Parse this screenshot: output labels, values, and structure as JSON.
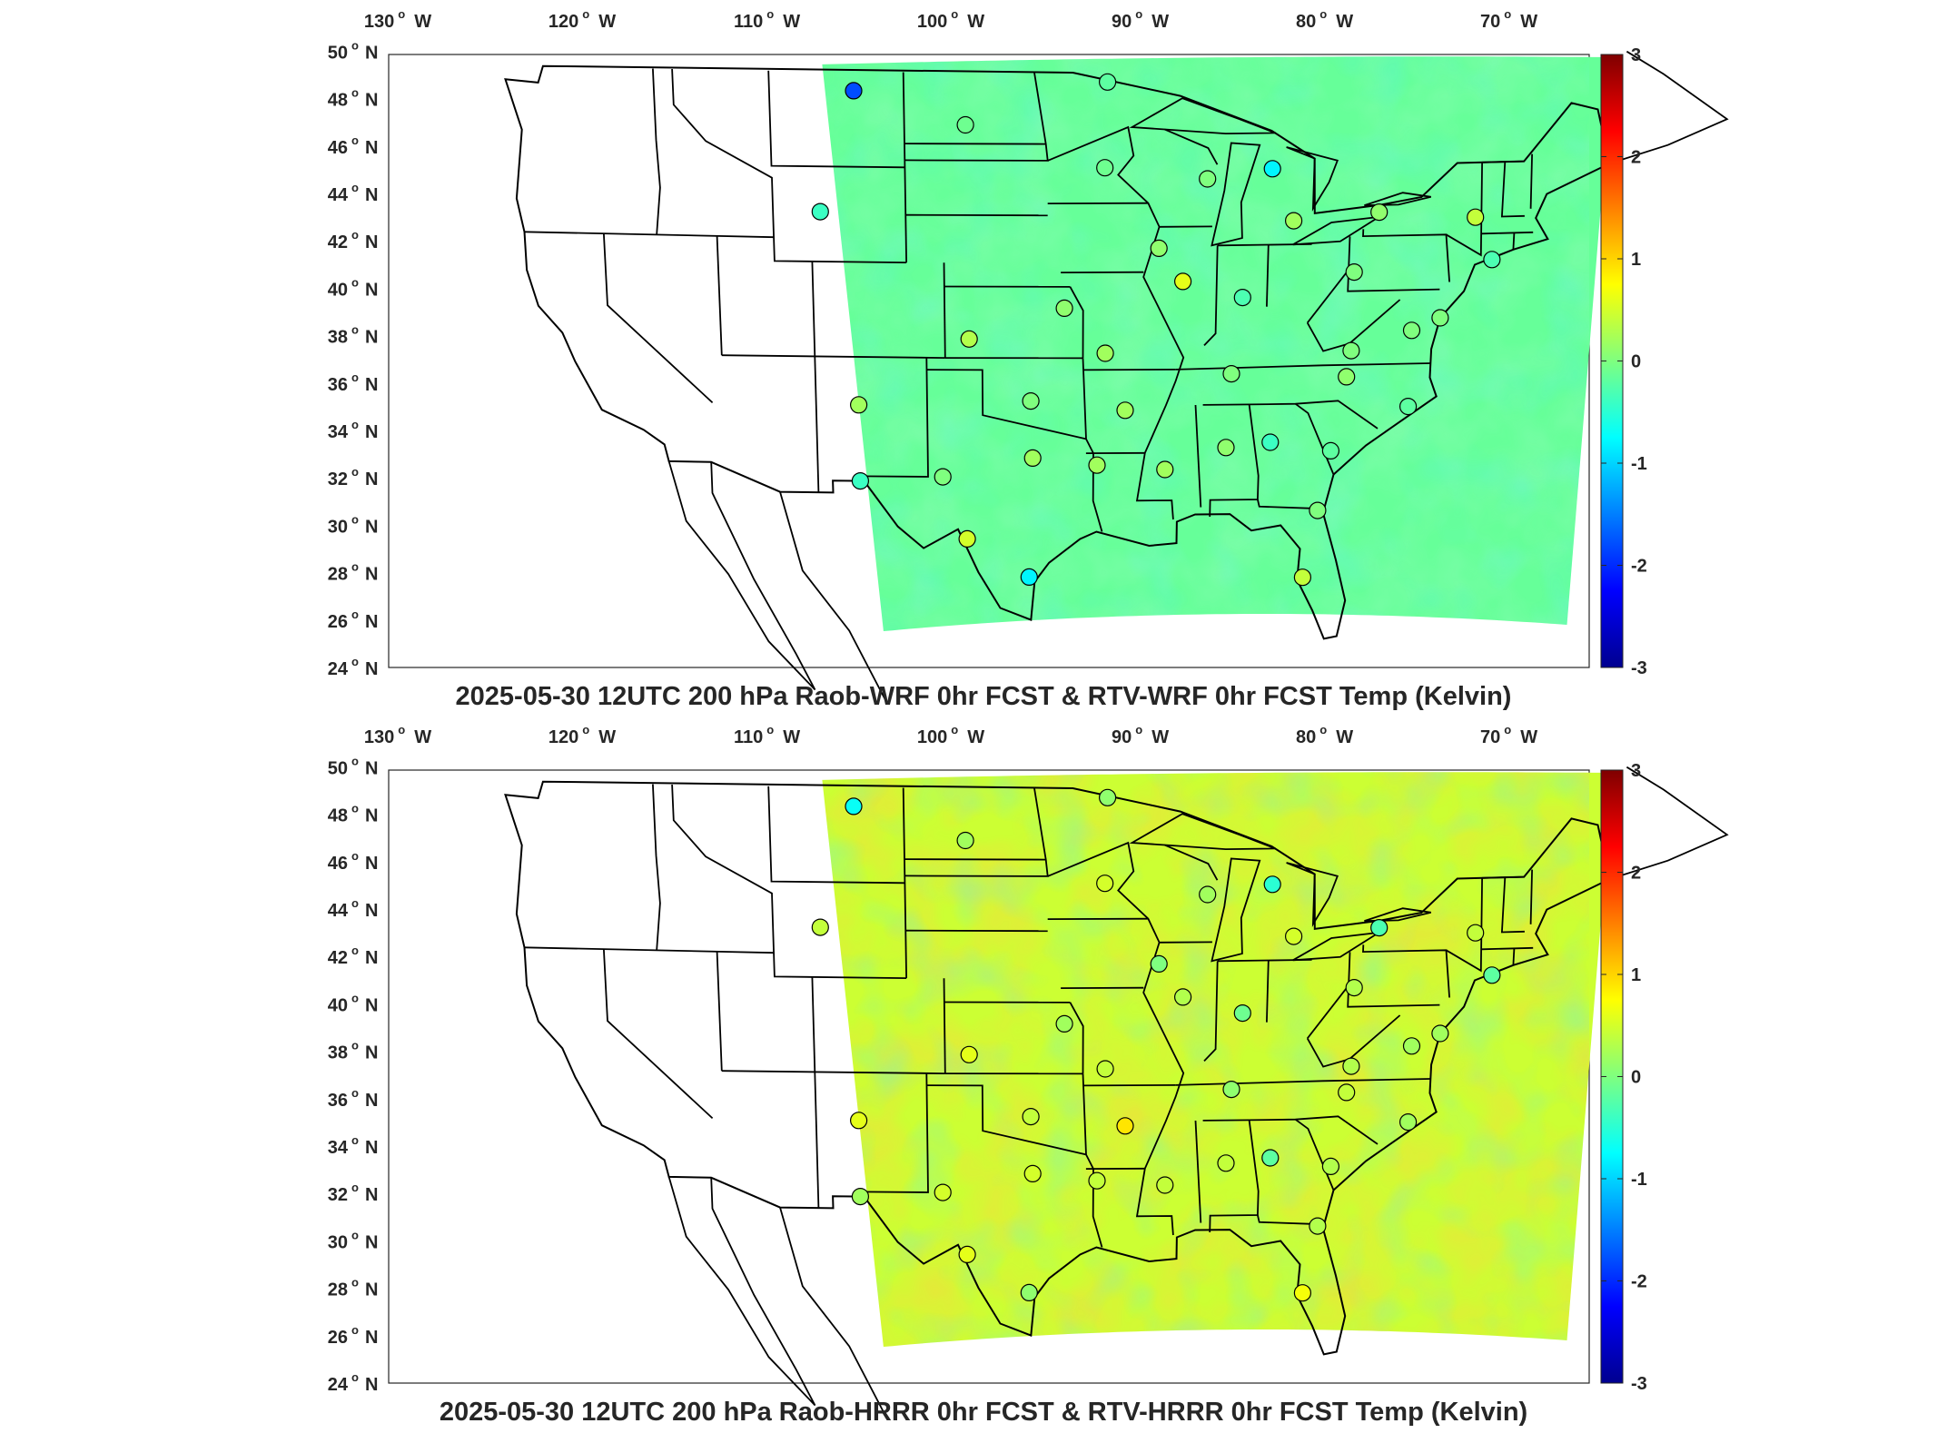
{
  "colors": {
    "jet": [
      "#00008f",
      "#0000ff",
      "#007fff",
      "#00ffff",
      "#7fff7f",
      "#ffff00",
      "#ff7f00",
      "#ff0000",
      "#7f0000"
    ],
    "field_wrf": "#7fe59a",
    "field_hrrr": "#c8f06a",
    "axis": "#262626",
    "state_lines": "#000000"
  },
  "panels": [
    {
      "id": "wrf",
      "title": "2025-05-30 12UTC 200 hPa Raob-WRF 0hr FCST & RTV-WRF 0hr FCST Temp (Kelvin)",
      "lon_labels": [
        "130",
        "120",
        "110",
        "100",
        "90",
        "80",
        "70"
      ],
      "lon_hemi": "W",
      "lat_labels": [
        "50",
        "48",
        "46",
        "44",
        "42",
        "40",
        "38",
        "36",
        "34",
        "32",
        "30",
        "28",
        "26",
        "24"
      ],
      "lat_hemi": "N",
      "degree_mark": "o",
      "colorbar_ticks": [
        "3",
        "2",
        "1",
        "0",
        "-1",
        "-2",
        "-3"
      ],
      "field_value_k": -0.15,
      "stations": [
        {
          "lon": -106.6,
          "lat": 48.2,
          "value": -1.8
        },
        {
          "lon": -100.8,
          "lat": 46.8,
          "value": -0.1
        },
        {
          "lon": -93.4,
          "lat": 48.6,
          "value": -0.2
        },
        {
          "lon": -108.5,
          "lat": 43.1,
          "value": -0.4
        },
        {
          "lon": -93.5,
          "lat": 45.0,
          "value": -0.1
        },
        {
          "lon": -88.1,
          "lat": 44.5,
          "value": 0.0
        },
        {
          "lon": -84.7,
          "lat": 44.9,
          "value": -0.8
        },
        {
          "lon": -83.5,
          "lat": 42.7,
          "value": 0.2
        },
        {
          "lon": -79.0,
          "lat": 43.0,
          "value": 0.1
        },
        {
          "lon": -73.9,
          "lat": 42.7,
          "value": 0.4
        },
        {
          "lon": -90.6,
          "lat": 41.6,
          "value": 0.1
        },
        {
          "lon": -89.3,
          "lat": 40.2,
          "value": 0.6
        },
        {
          "lon": -86.1,
          "lat": 39.5,
          "value": -0.3
        },
        {
          "lon": -80.2,
          "lat": 40.5,
          "value": 0.0
        },
        {
          "lon": -72.9,
          "lat": 40.9,
          "value": -0.3
        },
        {
          "lon": -95.6,
          "lat": 39.1,
          "value": 0.1
        },
        {
          "lon": -100.7,
          "lat": 37.8,
          "value": 0.3
        },
        {
          "lon": -93.4,
          "lat": 37.2,
          "value": 0.2
        },
        {
          "lon": -86.6,
          "lat": 36.3,
          "value": 0.0
        },
        {
          "lon": -80.2,
          "lat": 37.2,
          "value": 0.0
        },
        {
          "lon": -77.0,
          "lat": 38.0,
          "value": 0.0
        },
        {
          "lon": -80.4,
          "lat": 36.1,
          "value": 0.1
        },
        {
          "lon": -75.5,
          "lat": 38.5,
          "value": 0.0
        },
        {
          "lon": -106.7,
          "lat": 35.0,
          "value": 0.2
        },
        {
          "lon": -97.4,
          "lat": 35.2,
          "value": 0.0
        },
        {
          "lon": -92.3,
          "lat": 34.8,
          "value": 0.2
        },
        {
          "lon": -77.0,
          "lat": 34.8,
          "value": -0.2
        },
        {
          "lon": -86.8,
          "lat": 33.2,
          "value": 0.1
        },
        {
          "lon": -84.4,
          "lat": 33.4,
          "value": -0.4
        },
        {
          "lon": -81.1,
          "lat": 33.0,
          "value": -0.2
        },
        {
          "lon": -97.3,
          "lat": 32.8,
          "value": 0.2
        },
        {
          "lon": -90.1,
          "lat": 32.3,
          "value": 0.2
        },
        {
          "lon": -106.7,
          "lat": 31.8,
          "value": -0.4
        },
        {
          "lon": -102.2,
          "lat": 32.0,
          "value": 0.0
        },
        {
          "lon": -93.8,
          "lat": 32.5,
          "value": 0.2
        },
        {
          "lon": -100.9,
          "lat": 29.4,
          "value": 0.5
        },
        {
          "lon": -97.5,
          "lat": 27.8,
          "value": -0.8
        },
        {
          "lon": -81.7,
          "lat": 30.5,
          "value": 0.0
        },
        {
          "lon": -82.4,
          "lat": 27.7,
          "value": 0.4
        }
      ]
    },
    {
      "id": "hrrr",
      "title": "2025-05-30 12UTC 200 hPa Raob-HRRR 0hr FCST & RTV-HRRR 0hr FCST Temp (Kelvin)",
      "lon_labels": [
        "130",
        "120",
        "110",
        "100",
        "90",
        "80",
        "70"
      ],
      "lon_hemi": "W",
      "lat_labels": [
        "50",
        "48",
        "46",
        "44",
        "42",
        "40",
        "38",
        "36",
        "34",
        "32",
        "30",
        "28",
        "26",
        "24"
      ],
      "lat_hemi": "N",
      "degree_mark": "o",
      "colorbar_ticks": [
        "3",
        "2",
        "1",
        "0",
        "-1",
        "-2",
        "-3"
      ],
      "field_value_k": 0.45,
      "stations": [
        {
          "lon": -106.6,
          "lat": 48.2,
          "value": -0.7
        },
        {
          "lon": -100.8,
          "lat": 46.8,
          "value": 0.2
        },
        {
          "lon": -93.4,
          "lat": 48.6,
          "value": 0.1
        },
        {
          "lon": -108.5,
          "lat": 43.1,
          "value": 0.4
        },
        {
          "lon": -93.5,
          "lat": 45.0,
          "value": 0.5
        },
        {
          "lon": -88.1,
          "lat": 44.5,
          "value": 0.2
        },
        {
          "lon": -84.7,
          "lat": 44.9,
          "value": -0.5
        },
        {
          "lon": -83.5,
          "lat": 42.7,
          "value": 0.5
        },
        {
          "lon": -79.0,
          "lat": 43.0,
          "value": -0.3
        },
        {
          "lon": -73.9,
          "lat": 42.7,
          "value": 0.4
        },
        {
          "lon": -90.6,
          "lat": 41.6,
          "value": 0.0
        },
        {
          "lon": -89.3,
          "lat": 40.2,
          "value": 0.3
        },
        {
          "lon": -86.1,
          "lat": 39.5,
          "value": -0.1
        },
        {
          "lon": -80.2,
          "lat": 40.5,
          "value": 0.3
        },
        {
          "lon": -72.9,
          "lat": 40.9,
          "value": -0.2
        },
        {
          "lon": -95.6,
          "lat": 39.1,
          "value": 0.2
        },
        {
          "lon": -100.7,
          "lat": 37.8,
          "value": 0.6
        },
        {
          "lon": -93.4,
          "lat": 37.2,
          "value": 0.4
        },
        {
          "lon": -86.6,
          "lat": 36.3,
          "value": 0.1
        },
        {
          "lon": -80.2,
          "lat": 37.2,
          "value": 0.3
        },
        {
          "lon": -77.0,
          "lat": 38.0,
          "value": 0.2
        },
        {
          "lon": -80.4,
          "lat": 36.1,
          "value": 0.4
        },
        {
          "lon": -75.5,
          "lat": 38.5,
          "value": 0.2
        },
        {
          "lon": -106.7,
          "lat": 35.0,
          "value": 0.6
        },
        {
          "lon": -97.4,
          "lat": 35.2,
          "value": 0.4
        },
        {
          "lon": -92.3,
          "lat": 34.8,
          "value": 0.9
        },
        {
          "lon": -77.0,
          "lat": 34.8,
          "value": 0.2
        },
        {
          "lon": -86.8,
          "lat": 33.2,
          "value": 0.4
        },
        {
          "lon": -84.4,
          "lat": 33.4,
          "value": -0.2
        },
        {
          "lon": -81.1,
          "lat": 33.0,
          "value": 0.3
        },
        {
          "lon": -97.3,
          "lat": 32.8,
          "value": 0.5
        },
        {
          "lon": -90.1,
          "lat": 32.3,
          "value": 0.4
        },
        {
          "lon": -106.7,
          "lat": 31.8,
          "value": 0.2
        },
        {
          "lon": -102.2,
          "lat": 32.0,
          "value": 0.5
        },
        {
          "lon": -93.8,
          "lat": 32.5,
          "value": 0.4
        },
        {
          "lon": -100.9,
          "lat": 29.4,
          "value": 0.6
        },
        {
          "lon": -97.5,
          "lat": 27.8,
          "value": 0.1
        },
        {
          "lon": -81.7,
          "lat": 30.5,
          "value": 0.3
        },
        {
          "lon": -82.4,
          "lat": 27.7,
          "value": 0.7
        }
      ]
    }
  ]
}
